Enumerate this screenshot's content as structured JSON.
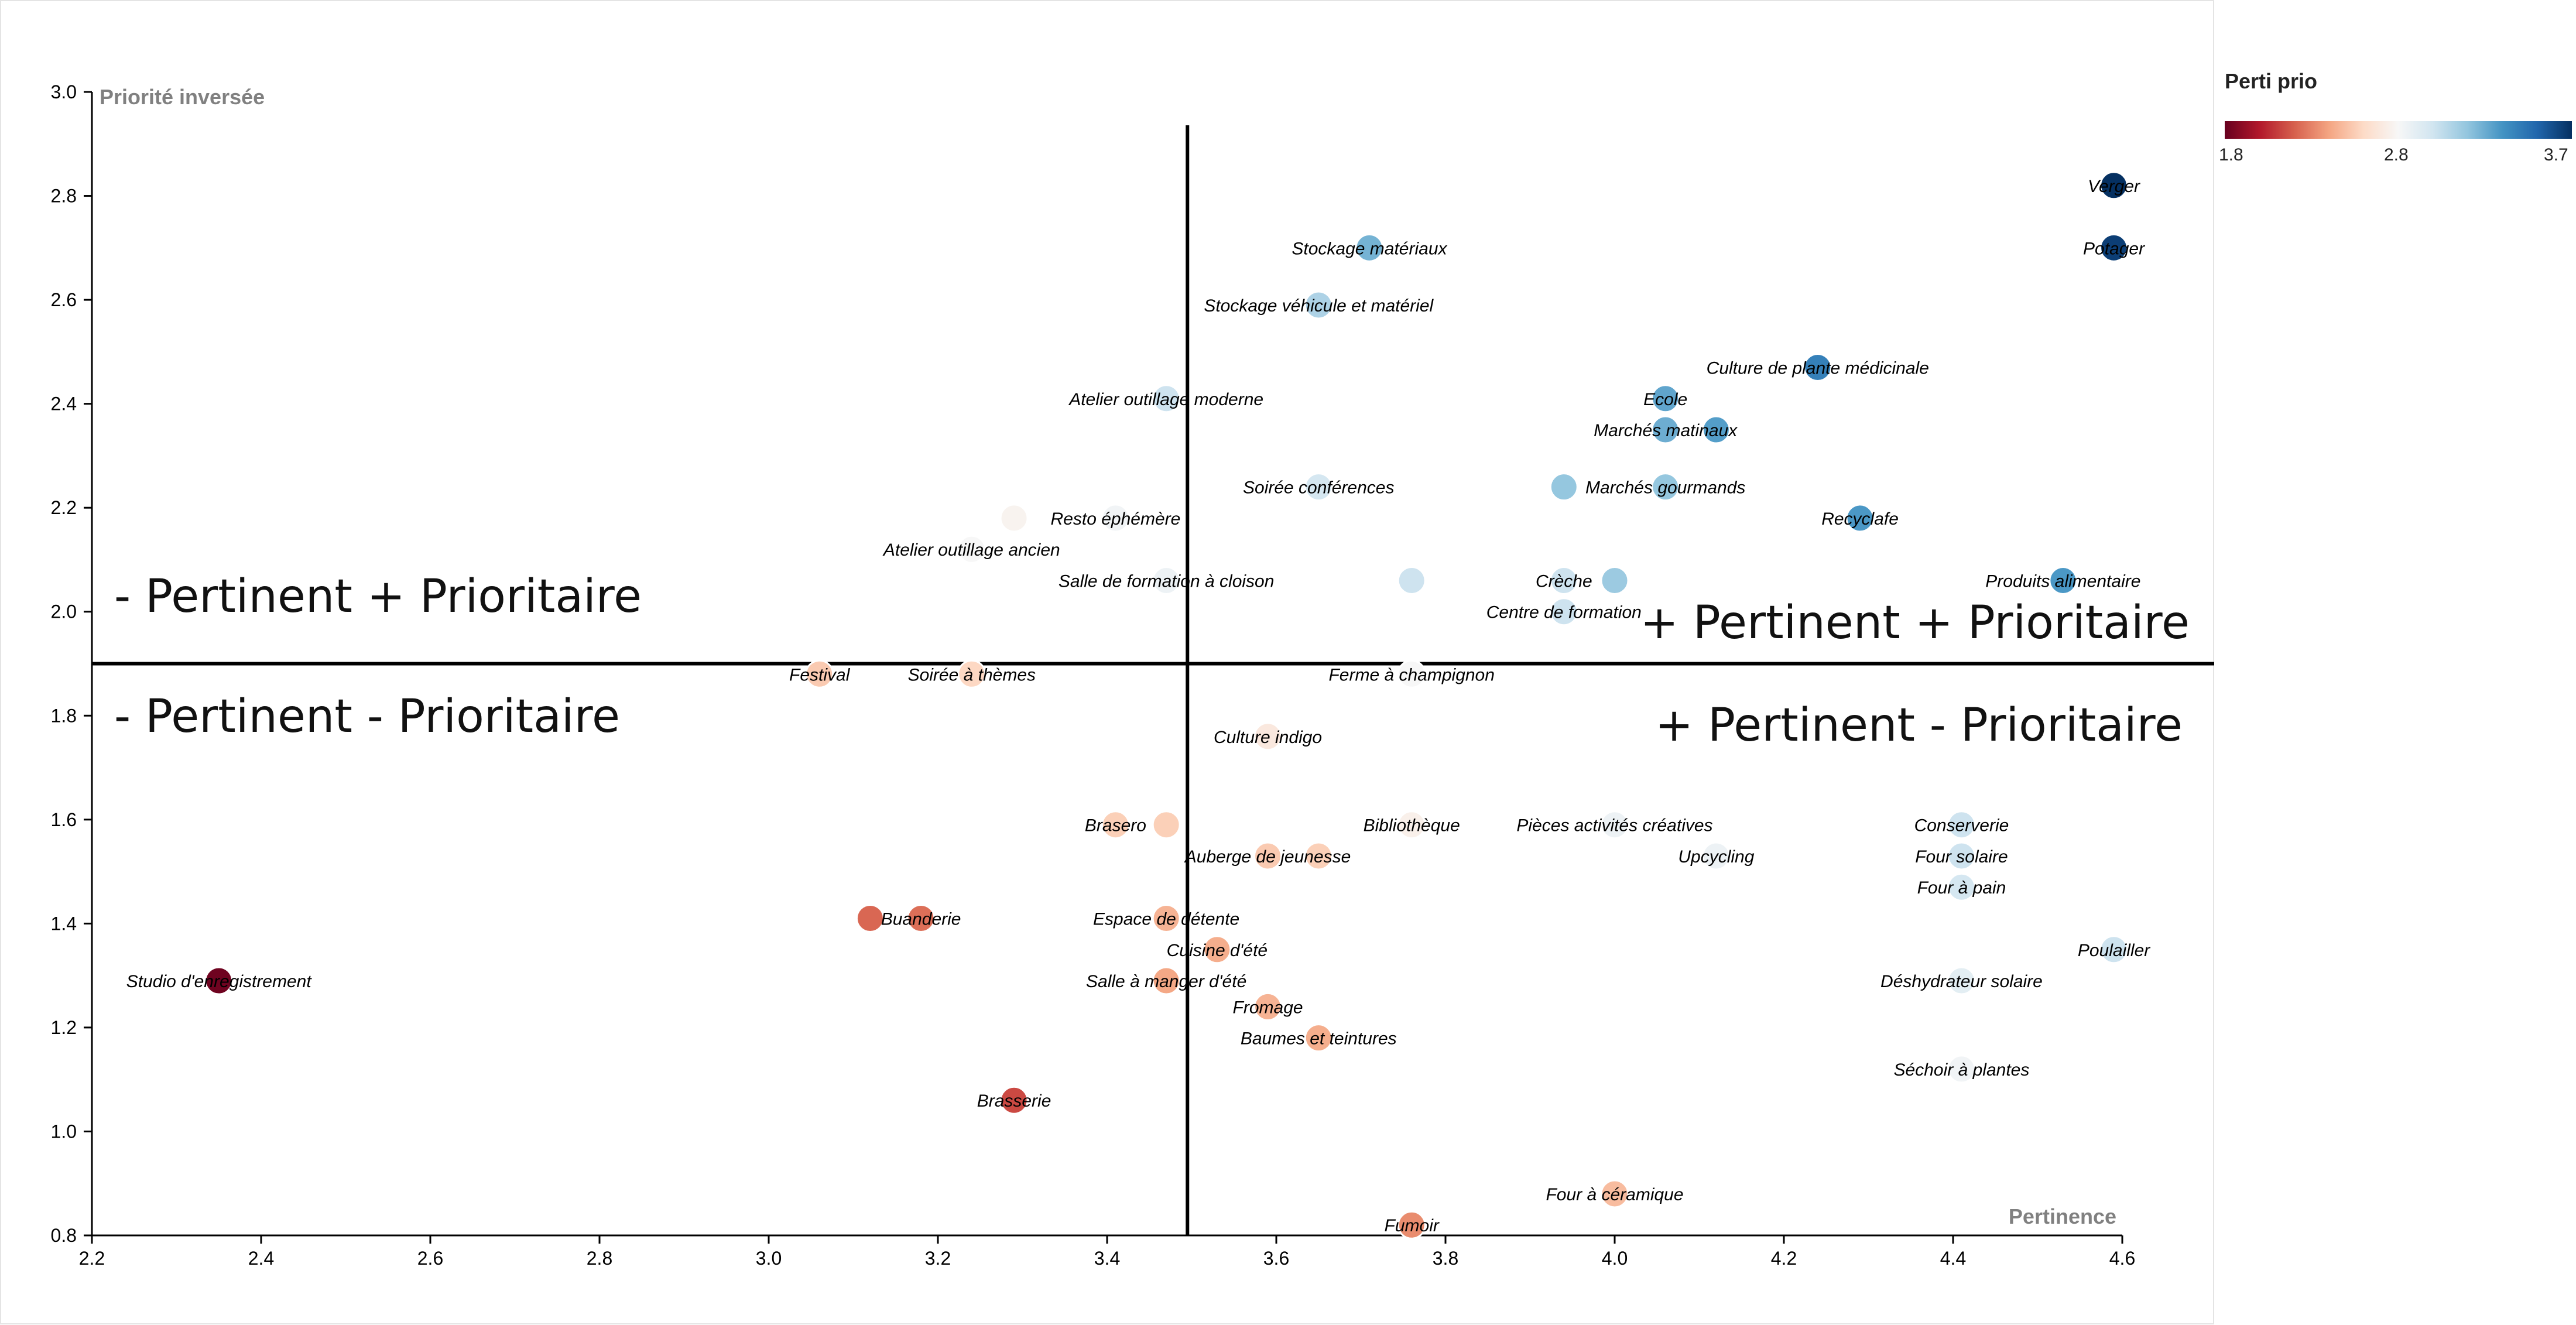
{
  "legend": {
    "title": "Perti prio",
    "min_label": "1.8",
    "mid_label": "2.8",
    "max_label": "3.7",
    "colors": [
      "#67001f",
      "#b2182b",
      "#d6604d",
      "#f4a582",
      "#fddbc7",
      "#f7f7f7",
      "#d1e5f0",
      "#92c5de",
      "#4393c3",
      "#2166ac",
      "#053061"
    ]
  },
  "chart_data": {
    "type": "scatter",
    "xlabel": "Pertinence",
    "ylabel": "Priorité inversée",
    "xlim": [
      2.2,
      4.6
    ],
    "ylim": [
      0.8,
      3.0
    ],
    "xticks": [
      "2.2",
      "2.4",
      "2.6",
      "2.8",
      "3.0",
      "3.2",
      "3.4",
      "3.6",
      "3.8",
      "4.0",
      "4.2",
      "4.4",
      "4.6"
    ],
    "yticks": [
      "0.8",
      "1.0",
      "1.2",
      "1.4",
      "1.6",
      "1.8",
      "2.0",
      "2.2",
      "2.4",
      "2.6",
      "2.8",
      "3.0"
    ],
    "quadrant_split": {
      "x": 3.495,
      "y": 1.9
    },
    "quadrant_labels": {
      "top_left": "- Pertinent + Prioritaire",
      "top_right": "+ Pertinent + Prioritaire",
      "bottom_left": "- Pertinent - Prioritaire",
      "bottom_right": "+ Pertinent - Prioritaire"
    },
    "colorbar": {
      "label": "Perti prio",
      "range": [
        1.8,
        3.7
      ]
    },
    "points": [
      {
        "label": "Verger",
        "x": 4.59,
        "y": 2.82,
        "c": 3.7
      },
      {
        "label": "Potager",
        "x": 4.59,
        "y": 2.7,
        "c": 3.65
      },
      {
        "label": "Stockage matériaux",
        "x": 3.71,
        "y": 2.7,
        "c": 3.2
      },
      {
        "label": "Stockage véhicule et matériel",
        "x": 3.65,
        "y": 2.59,
        "c": 3.05
      },
      {
        "label": "Culture de plante médicinale",
        "x": 4.24,
        "y": 2.47,
        "c": 3.4
      },
      {
        "label": "Atelier outillage moderne",
        "x": 3.47,
        "y": 2.41,
        "c": 2.95
      },
      {
        "label": "Ecole",
        "x": 4.06,
        "y": 2.41,
        "c": 3.25
      },
      {
        "label": "Marchés matinaux",
        "x": 4.06,
        "y": 2.35,
        "c": 3.22
      },
      {
        "label": "",
        "x": 4.12,
        "y": 2.35,
        "c": 3.28
      },
      {
        "label": "Soirée conférences",
        "x": 3.65,
        "y": 2.24,
        "c": 2.92
      },
      {
        "label": "",
        "x": 3.94,
        "y": 2.24,
        "c": 3.12
      },
      {
        "label": "Marchés gourmands",
        "x": 4.06,
        "y": 2.24,
        "c": 3.12
      },
      {
        "label": "Resto éphémère",
        "x": 3.41,
        "y": 2.18,
        "c": 2.78
      },
      {
        "label": "",
        "x": 3.29,
        "y": 2.18,
        "c": 2.72
      },
      {
        "label": "Recyclafe",
        "x": 4.29,
        "y": 2.18,
        "c": 3.3
      },
      {
        "label": "Atelier outillage ancien",
        "x": 3.24,
        "y": 2.12,
        "c": 2.75
      },
      {
        "label": "Salle de formation à cloison",
        "x": 3.47,
        "y": 2.06,
        "c": 2.8
      },
      {
        "label": "",
        "x": 3.76,
        "y": 2.06,
        "c": 2.95
      },
      {
        "label": "Crèche",
        "x": 3.94,
        "y": 2.06,
        "c": 2.95
      },
      {
        "label": "",
        "x": 4.0,
        "y": 2.06,
        "c": 3.1
      },
      {
        "label": "Produits alimentaire",
        "x": 4.53,
        "y": 2.06,
        "c": 3.3
      },
      {
        "label": "Centre de formation",
        "x": 3.94,
        "y": 2.0,
        "c": 2.95
      },
      {
        "label": "Festival",
        "x": 3.06,
        "y": 1.88,
        "c": 2.5
      },
      {
        "label": "Soirée à thèmes",
        "x": 3.24,
        "y": 1.88,
        "c": 2.55
      },
      {
        "label": "Ferme à champignon",
        "x": 3.76,
        "y": 1.88,
        "c": 2.75
      },
      {
        "label": "Culture indigo",
        "x": 3.59,
        "y": 1.76,
        "c": 2.65
      },
      {
        "label": "Brasero",
        "x": 3.41,
        "y": 1.59,
        "c": 2.52
      },
      {
        "label": "",
        "x": 3.47,
        "y": 1.59,
        "c": 2.52
      },
      {
        "label": "Bibliothèque",
        "x": 3.76,
        "y": 1.59,
        "c": 2.7
      },
      {
        "label": "Pièces activités créatives",
        "x": 4.0,
        "y": 1.59,
        "c": 2.8
      },
      {
        "label": "Conserverie",
        "x": 4.41,
        "y": 1.59,
        "c": 2.95
      },
      {
        "label": "Auberge de jeunesse",
        "x": 3.59,
        "y": 1.53,
        "c": 2.5
      },
      {
        "label": "",
        "x": 3.65,
        "y": 1.53,
        "c": 2.52
      },
      {
        "label": "Upcycling",
        "x": 4.12,
        "y": 1.53,
        "c": 2.8
      },
      {
        "label": "Four solaire",
        "x": 4.41,
        "y": 1.53,
        "c": 2.95
      },
      {
        "label": "Four à pain",
        "x": 4.41,
        "y": 1.47,
        "c": 2.92
      },
      {
        "label": "",
        "x": 3.12,
        "y": 1.41,
        "c": 2.2
      },
      {
        "label": "Buanderie",
        "x": 3.18,
        "y": 1.41,
        "c": 2.22
      },
      {
        "label": "Espace de détente",
        "x": 3.47,
        "y": 1.41,
        "c": 2.42
      },
      {
        "label": "Cuisine d'été",
        "x": 3.53,
        "y": 1.35,
        "c": 2.4
      },
      {
        "label": "Poulailler",
        "x": 4.59,
        "y": 1.35,
        "c": 2.95
      },
      {
        "label": "Studio d'enregistrement",
        "x": 2.35,
        "y": 1.29,
        "c": 1.82
      },
      {
        "label": "Salle à manger d'été",
        "x": 3.47,
        "y": 1.29,
        "c": 2.38
      },
      {
        "label": "Déshydrateur solaire",
        "x": 4.41,
        "y": 1.29,
        "c": 2.85
      },
      {
        "label": "Fromage",
        "x": 3.59,
        "y": 1.24,
        "c": 2.42
      },
      {
        "label": "Baumes et teintures",
        "x": 3.65,
        "y": 1.18,
        "c": 2.4
      },
      {
        "label": "Séchoir à plantes",
        "x": 4.41,
        "y": 1.12,
        "c": 2.78
      },
      {
        "label": "Brasserie",
        "x": 3.29,
        "y": 1.06,
        "c": 2.12
      },
      {
        "label": "Four à céramique",
        "x": 4.0,
        "y": 0.88,
        "c": 2.45
      },
      {
        "label": "Fumoir",
        "x": 3.76,
        "y": 0.82,
        "c": 2.3
      }
    ]
  }
}
